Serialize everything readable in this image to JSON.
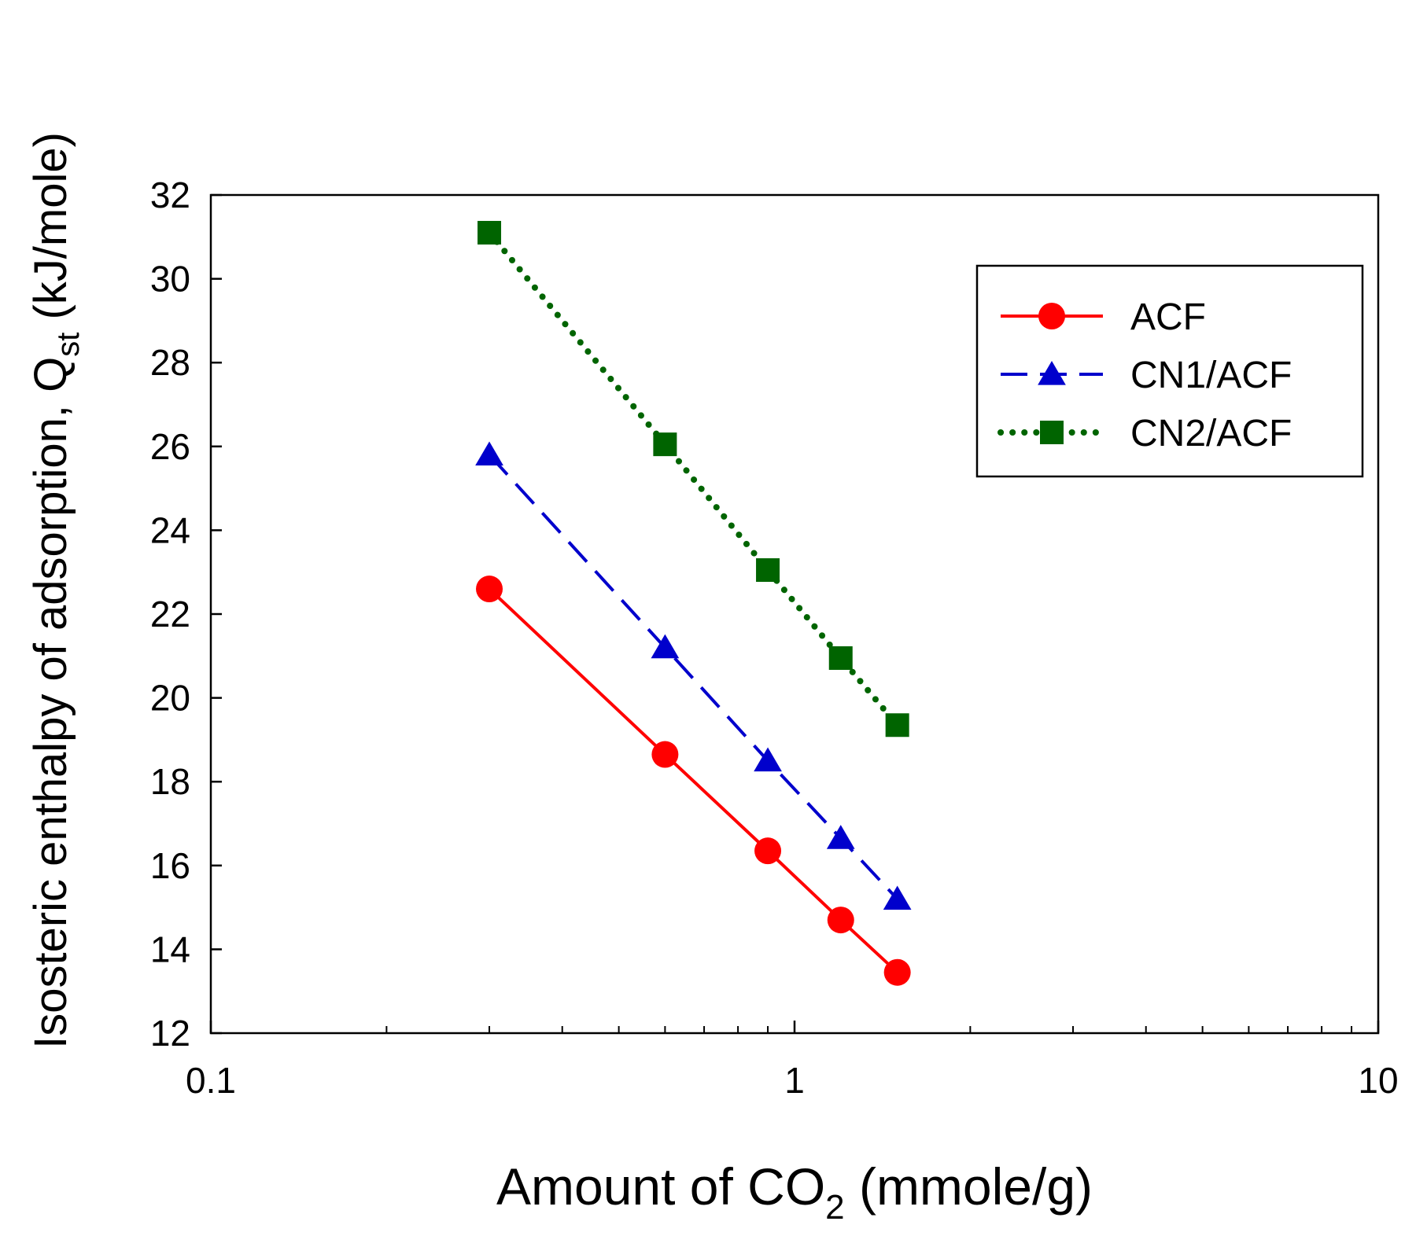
{
  "chart_data": {
    "type": "line",
    "x_scale": "log",
    "xlim": [
      0.1,
      10
    ],
    "ylim": [
      12,
      32
    ],
    "x_ticks": [
      "0.1",
      "1",
      "10"
    ],
    "y_ticks": [
      "12",
      "14",
      "16",
      "18",
      "20",
      "22",
      "24",
      "26",
      "28",
      "30",
      "32"
    ],
    "xlabel": {
      "pre": "Amount of CO",
      "sub": "2",
      "post": " (mmole/g)"
    },
    "ylabel": {
      "pre": "Isosteric enthalpy of adsorption, Q",
      "sub": "st",
      "post": " (kJ/mole)"
    },
    "legend_position": "top-right",
    "x": [
      0.3,
      0.6,
      0.9,
      1.2,
      1.5
    ],
    "series": [
      {
        "name": "ACF",
        "color": "#ff0000",
        "marker": "circle",
        "line": "solid",
        "values": [
          22.6,
          18.65,
          16.35,
          14.7,
          13.45
        ]
      },
      {
        "name": "CN1/ACF",
        "color": "#0000cc",
        "marker": "triangle",
        "line": "dashed",
        "values": [
          25.8,
          21.2,
          18.5,
          16.65,
          15.2
        ]
      },
      {
        "name": "CN2/ACF",
        "color": "#006400",
        "marker": "square",
        "line": "dotted",
        "values": [
          31.1,
          26.05,
          23.05,
          20.95,
          19.35
        ]
      }
    ]
  }
}
